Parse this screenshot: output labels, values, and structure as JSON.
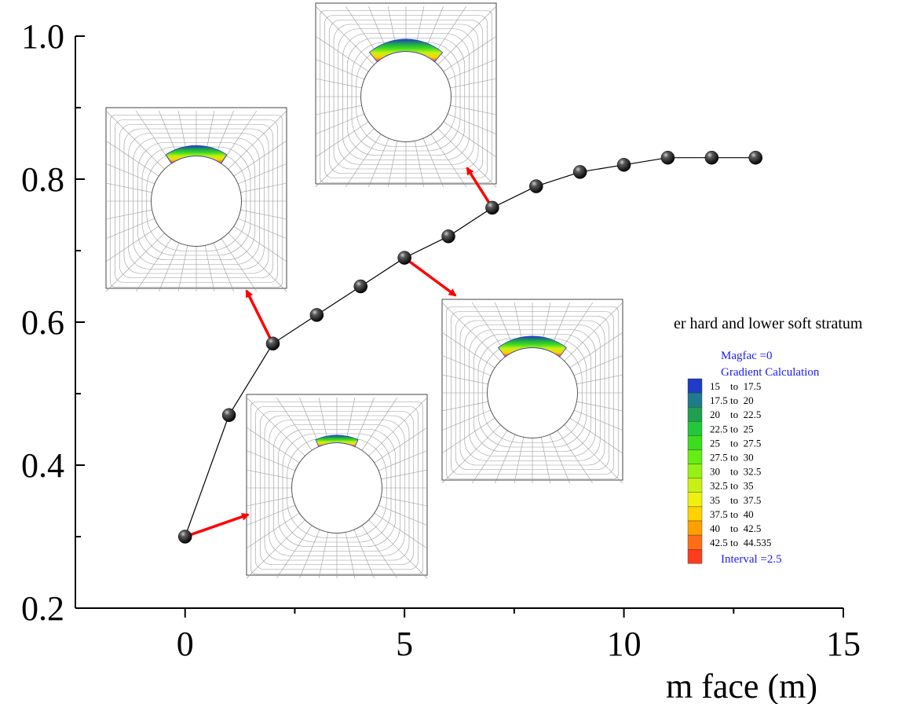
{
  "chart_data": {
    "type": "line",
    "title": "",
    "xlabel": "m face (m)",
    "ylabel": "",
    "xlim": [
      -2.5,
      15
    ],
    "ylim": [
      0.2,
      1.0
    ],
    "x_ticks": [
      0,
      5,
      10,
      15
    ],
    "y_ticks": [
      0.2,
      0.4,
      0.6,
      0.8,
      1.0
    ],
    "x_tick_labels": [
      "0",
      "5",
      "10",
      "15"
    ],
    "y_tick_labels": [
      "0.2",
      "0.4",
      "0.6",
      "0.8",
      "1.0"
    ],
    "series": [
      {
        "name": "stratum",
        "x": [
          0,
          1,
          2,
          3,
          4,
          5,
          6,
          7,
          8,
          9,
          10,
          11,
          12,
          13
        ],
        "y": [
          0.3,
          0.47,
          0.57,
          0.61,
          0.65,
          0.69,
          0.72,
          0.76,
          0.79,
          0.81,
          0.82,
          0.83,
          0.83,
          0.83
        ]
      }
    ],
    "insets": [
      {
        "name": "inset-x0",
        "at_x": 0,
        "at_y": 0.3,
        "arc": 0.3
      },
      {
        "name": "inset-x2",
        "at_x": 2,
        "at_y": 0.57,
        "arc": 0.6
      },
      {
        "name": "inset-x5",
        "at_x": 5,
        "at_y": 0.69,
        "arc": 0.72
      },
      {
        "name": "inset-x7",
        "at_x": 7,
        "at_y": 0.76,
        "arc": 0.8
      }
    ],
    "legend": {
      "title": "er hard and lower soft stratum",
      "magfac": "Magfac =0",
      "calc": "Gradient Calculation",
      "interval": "Interval =2.5",
      "placement": "right",
      "entries": [
        {
          "label": "15    to  17.5",
          "color": "#1e3cc8"
        },
        {
          "label": "17.5 to  20",
          "color": "#1d7c8c"
        },
        {
          "label": "20    to  22.5",
          "color": "#1fa050"
        },
        {
          "label": "22.5 to  25",
          "color": "#22c83c"
        },
        {
          "label": "25    to  27.5",
          "color": "#3cdc1e"
        },
        {
          "label": "27.5 to  30",
          "color": "#64ee14"
        },
        {
          "label": "30    to  32.5",
          "color": "#96f014"
        },
        {
          "label": "32.5 to  35",
          "color": "#c8f014"
        },
        {
          "label": "35    to  37.5",
          "color": "#f0f00f"
        },
        {
          "label": "37.5 to  40",
          "color": "#ffd200"
        },
        {
          "label": "40    to  42.5",
          "color": "#ffa000"
        },
        {
          "label": "42.5 to  44.535",
          "color": "#ff6e14"
        },
        {
          "label": "",
          "color": "#ff3c1e"
        }
      ]
    }
  }
}
